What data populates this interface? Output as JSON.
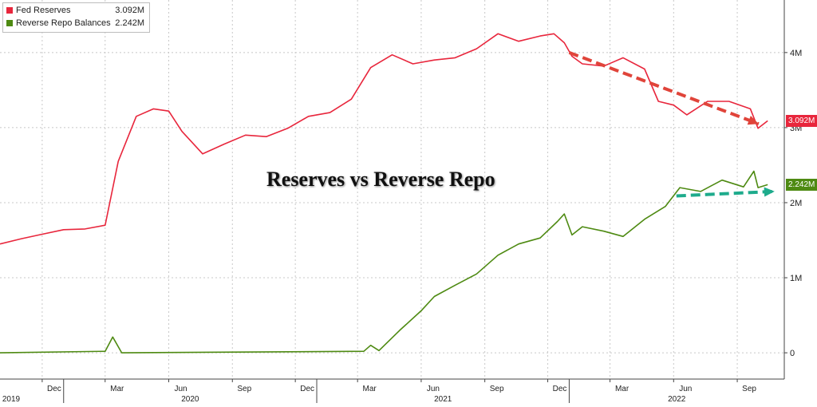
{
  "chart_data": {
    "type": "line",
    "title": "Reserves vs Reverse Repo",
    "y_ticks": [
      "0",
      "1M",
      "2M",
      "3M",
      "4M"
    ],
    "ylim": [
      -350000,
      4700000
    ],
    "x_month_labels": [
      "Dec",
      "Mar",
      "Jun",
      "Sep",
      "Dec",
      "Mar",
      "Jun",
      "Sep",
      "Dec",
      "Mar",
      "Jun",
      "Sep"
    ],
    "x_year_labels": [
      "2019",
      "2020",
      "2021",
      "2022"
    ],
    "grid": true,
    "legend": "top-left",
    "colors": {
      "fed_reserves": "#e8263c",
      "reverse_repo": "#4e8a12",
      "arrow_red": "#e0443a",
      "arrow_teal": "#1eab8c"
    },
    "series": [
      {
        "name": "Fed Reserves",
        "last_value_label": "3.092M",
        "values": [
          [
            "2019-10-01",
            1.45
          ],
          [
            "2019-11-01",
            1.52
          ],
          [
            "2019-12-01",
            1.58
          ],
          [
            "2020-01-01",
            1.64
          ],
          [
            "2020-02-01",
            1.65
          ],
          [
            "2020-03-01",
            1.7
          ],
          [
            "2020-03-20",
            2.55
          ],
          [
            "2020-04-15",
            3.15
          ],
          [
            "2020-05-10",
            3.25
          ],
          [
            "2020-06-01",
            3.22
          ],
          [
            "2020-06-20",
            2.95
          ],
          [
            "2020-07-20",
            2.65
          ],
          [
            "2020-08-20",
            2.78
          ],
          [
            "2020-09-20",
            2.9
          ],
          [
            "2020-10-20",
            2.88
          ],
          [
            "2020-11-20",
            2.99
          ],
          [
            "2020-12-20",
            3.15
          ],
          [
            "2021-01-20",
            3.2
          ],
          [
            "2021-02-20",
            3.38
          ],
          [
            "2021-03-20",
            3.8
          ],
          [
            "2021-04-20",
            3.97
          ],
          [
            "2021-05-20",
            3.85
          ],
          [
            "2021-06-20",
            3.9
          ],
          [
            "2021-07-20",
            3.93
          ],
          [
            "2021-08-20",
            4.05
          ],
          [
            "2021-09-20",
            4.25
          ],
          [
            "2021-10-20",
            4.15
          ],
          [
            "2021-11-20",
            4.22
          ],
          [
            "2021-12-10",
            4.25
          ],
          [
            "2021-12-25",
            4.13
          ],
          [
            "2022-01-05",
            3.95
          ],
          [
            "2022-01-20",
            3.85
          ],
          [
            "2022-02-20",
            3.82
          ],
          [
            "2022-03-20",
            3.93
          ],
          [
            "2022-04-20",
            3.78
          ],
          [
            "2022-05-10",
            3.35
          ],
          [
            "2022-06-01",
            3.3
          ],
          [
            "2022-06-20",
            3.17
          ],
          [
            "2022-07-20",
            3.35
          ],
          [
            "2022-08-20",
            3.35
          ],
          [
            "2022-09-20",
            3.25
          ],
          [
            "2022-10-01",
            2.99
          ],
          [
            "2022-10-15",
            3.09
          ]
        ]
      },
      {
        "name": "Reverse Repo Balances",
        "last_value_label": "2.242M",
        "values": [
          [
            "2019-10-01",
            0.0
          ],
          [
            "2020-03-01",
            0.02
          ],
          [
            "2020-03-12",
            0.21
          ],
          [
            "2020-03-25",
            0.0
          ],
          [
            "2021-03-10",
            0.02
          ],
          [
            "2021-03-20",
            0.1
          ],
          [
            "2021-04-01",
            0.03
          ],
          [
            "2021-05-01",
            0.3
          ],
          [
            "2021-06-01",
            0.56
          ],
          [
            "2021-06-20",
            0.75
          ],
          [
            "2021-07-20",
            0.9
          ],
          [
            "2021-08-20",
            1.05
          ],
          [
            "2021-09-20",
            1.3
          ],
          [
            "2021-10-20",
            1.45
          ],
          [
            "2021-11-20",
            1.53
          ],
          [
            "2021-12-15",
            1.75
          ],
          [
            "2021-12-25",
            1.85
          ],
          [
            "2022-01-05",
            1.57
          ],
          [
            "2022-01-20",
            1.68
          ],
          [
            "2022-02-20",
            1.62
          ],
          [
            "2022-03-20",
            1.55
          ],
          [
            "2022-04-20",
            1.78
          ],
          [
            "2022-05-20",
            1.95
          ],
          [
            "2022-06-10",
            2.2
          ],
          [
            "2022-07-10",
            2.15
          ],
          [
            "2022-08-10",
            2.3
          ],
          [
            "2022-09-10",
            2.21
          ],
          [
            "2022-09-25",
            2.42
          ],
          [
            "2022-10-01",
            2.2
          ],
          [
            "2022-10-15",
            2.24
          ]
        ]
      }
    ]
  }
}
